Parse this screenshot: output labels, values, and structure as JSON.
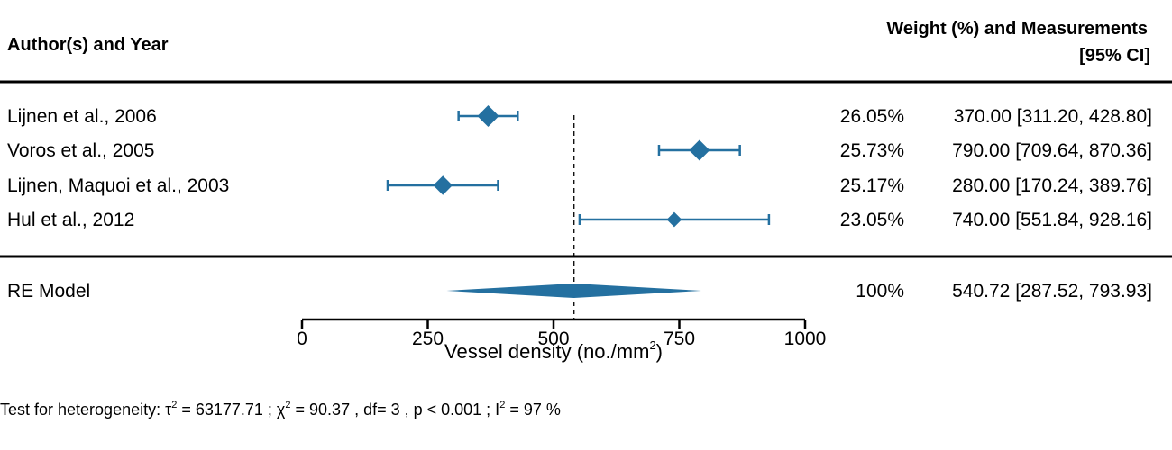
{
  "chart_data": {
    "type": "forest",
    "header": {
      "left": "Author(s) and Year",
      "right_line1": "Weight (%) and Measurements",
      "right_line2": "[95% CI]"
    },
    "studies": [
      {
        "label": "Lijnen et al., 2006",
        "estimate": 370.0,
        "ci_low": 311.2,
        "ci_high": 428.8,
        "weight": "26.05%",
        "text": "370.00 [311.20, 428.80]"
      },
      {
        "label": "Voros et al., 2005",
        "estimate": 790.0,
        "ci_low": 709.64,
        "ci_high": 870.36,
        "weight": "25.73%",
        "text": "790.00 [709.64, 870.36]"
      },
      {
        "label": "Lijnen, Maquoi et al., 2003",
        "estimate": 280.0,
        "ci_low": 170.24,
        "ci_high": 389.76,
        "weight": "25.17%",
        "text": "280.00 [170.24, 389.76]"
      },
      {
        "label": "Hul et al., 2012",
        "estimate": 740.0,
        "ci_low": 551.84,
        "ci_high": 928.16,
        "weight": "23.05%",
        "text": "740.00 [551.84, 928.16]"
      }
    ],
    "summary": {
      "label": "RE Model",
      "estimate": 540.72,
      "ci_low": 287.52,
      "ci_high": 793.93,
      "weight": "100%",
      "text": "540.72 [287.52, 793.93]"
    },
    "xaxis": {
      "ticks": [
        0,
        250,
        500,
        750,
        1000
      ],
      "tick_labels": [
        "0",
        "250",
        "500",
        "750",
        "1000"
      ],
      "range": [
        0,
        1000
      ]
    },
    "xlabel": "Vessel density (no./mm²)",
    "footer": "Test for heterogeneity:  τ² = 63177.71 ;  χ² = 90.37 , df= 3 ,  p < 0.001 ;  I² = 97 %",
    "colors": {
      "marker": "#2470a0"
    }
  }
}
